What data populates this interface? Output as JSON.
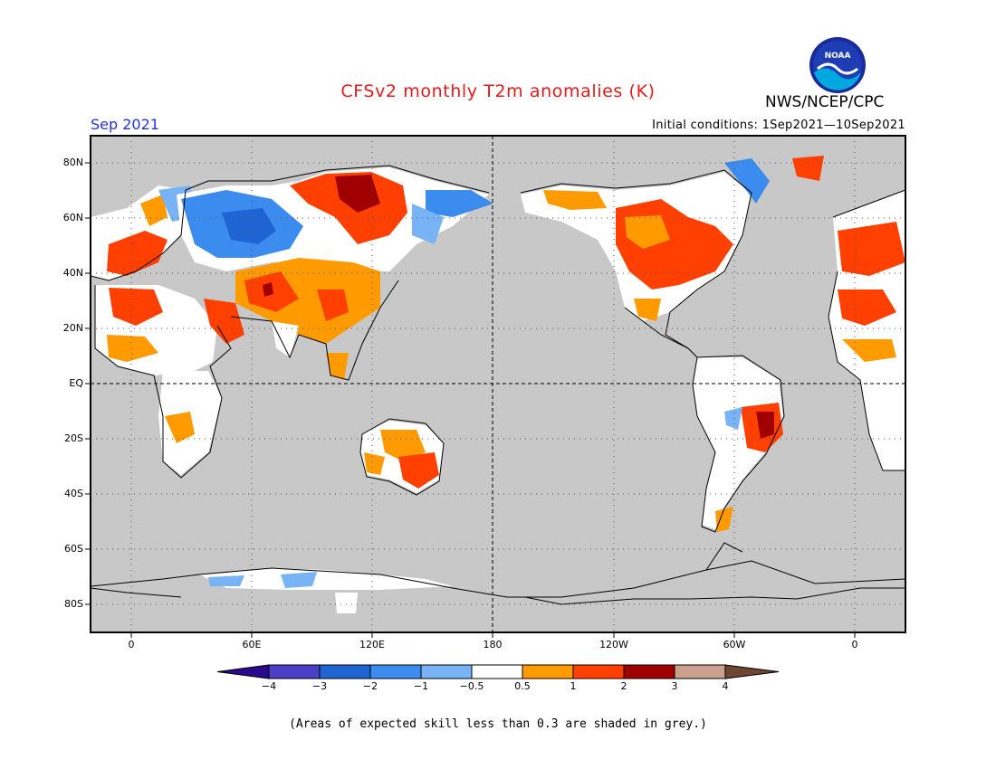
{
  "header": {
    "title": "CFSv2 monthly T2m anomalies (K)",
    "agency": "NWS/NCEP/CPC",
    "month": "Sep 2021",
    "initial_conditions": "Initial conditions: 1Sep2021—10Sep2021",
    "logo_text": "NOAA"
  },
  "map": {
    "latitude_labels": [
      "80N",
      "60N",
      "40N",
      "20N",
      "EQ",
      "20S",
      "40S",
      "60S",
      "80S"
    ],
    "longitude_labels": [
      "0",
      "60E",
      "120E",
      "180",
      "120W",
      "60W",
      "0"
    ],
    "background_color": "#c8c8c8",
    "frame_color": "#000000"
  },
  "colorbar": {
    "labels": [
      "−4",
      "−3",
      "−2",
      "−1",
      "−0.5",
      "0.5",
      "1",
      "2",
      "3",
      "4"
    ],
    "colors": [
      "#2a0a8c",
      "#4c3ec8",
      "#1e64d2",
      "#3c8cf0",
      "#78b4f5",
      "#ffffff",
      "#ff9a00",
      "#ff4000",
      "#a00000",
      "#c8a08c",
      "#6e4632"
    ]
  },
  "footnote": "(Areas of expected skill less than 0.3 are shaded in grey.)"
}
